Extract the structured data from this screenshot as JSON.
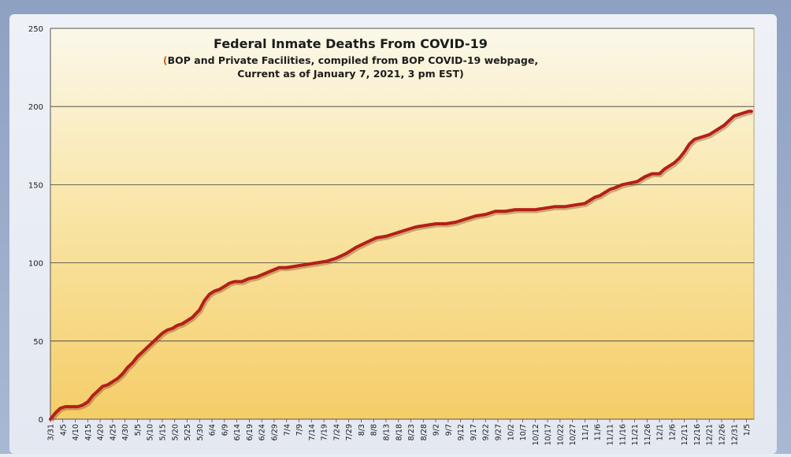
{
  "chart_data": {
    "type": "line",
    "title": "Federal Inmate Deaths From COVID-19",
    "subtitle_line1_open": "(",
    "subtitle_line1_text": "BOP and Private Facilities, compiled from BOP COVID-19 webpage,",
    "subtitle_line2": "Current as of January 7, 2021, 3 pm EST)",
    "xlabel": "",
    "ylabel": "",
    "ylim": [
      0,
      250
    ],
    "yticks": [
      0,
      50,
      100,
      150,
      200,
      250
    ],
    "grid": true,
    "x_tick_labels": [
      "3/31",
      "4/5",
      "4/10",
      "4/15",
      "4/20",
      "4/25",
      "4/30",
      "5/5",
      "5/10",
      "5/15",
      "5/20",
      "5/25",
      "5/30",
      "6/4",
      "6/9",
      "6/14",
      "6/19",
      "6/24",
      "6/29",
      "7/4",
      "7/9",
      "7/14",
      "7/19",
      "7/24",
      "7/29",
      "8/3",
      "8/8",
      "8/13",
      "8/18",
      "8/23",
      "8/28",
      "9/2",
      "9/7",
      "9/12",
      "9/17",
      "9/22",
      "9/27",
      "10/2",
      "10/7",
      "10/12",
      "10/17",
      "10/22",
      "10/27",
      "11/1",
      "11/6",
      "11/11",
      "11/16",
      "11/21",
      "11/26",
      "12/1",
      "12/6",
      "12/11",
      "12/16",
      "12/21",
      "12/26",
      "12/31",
      "1/5"
    ],
    "series": [
      {
        "x": [
          "3/31",
          "4/2",
          "4/4",
          "4/6",
          "4/9",
          "4/11",
          "4/13",
          "4/15",
          "4/17",
          "4/19",
          "4/21",
          "4/23",
          "4/25",
          "4/27",
          "4/29",
          "5/1",
          "5/3",
          "5/5",
          "5/7",
          "5/9",
          "5/11",
          "5/13",
          "5/15",
          "5/17",
          "5/19",
          "5/21",
          "5/23",
          "5/25",
          "5/27",
          "5/30",
          "6/1",
          "6/3",
          "6/5",
          "6/7",
          "6/9",
          "6/11",
          "6/13",
          "6/16",
          "6/19",
          "6/22",
          "6/25",
          "6/28",
          "7/1",
          "7/4",
          "7/8",
          "7/12",
          "7/16",
          "7/20",
          "7/24",
          "7/28",
          "8/1",
          "8/5",
          "8/9",
          "8/13",
          "8/17",
          "8/21",
          "8/25",
          "8/29",
          "9/2",
          "9/6",
          "9/10",
          "9/14",
          "9/18",
          "9/22",
          "9/26",
          "9/30",
          "10/4",
          "10/8",
          "10/12",
          "10/16",
          "10/20",
          "10/24",
          "10/28",
          "11/1",
          "11/3",
          "11/5",
          "11/7",
          "11/9",
          "11/11",
          "11/13",
          "11/16",
          "11/19",
          "11/22",
          "11/25",
          "11/28",
          "12/1",
          "12/3",
          "12/5",
          "12/7",
          "12/9",
          "12/11",
          "12/13",
          "12/15",
          "12/17",
          "12/19",
          "12/21",
          "12/23",
          "12/25",
          "12/27",
          "12/29",
          "12/31",
          "1/2",
          "1/4",
          "1/6",
          "1/7"
        ],
        "y": [
          0,
          4,
          7,
          8,
          8,
          8,
          9,
          11,
          15,
          18,
          21,
          22,
          24,
          26,
          29,
          33,
          36,
          40,
          43,
          46,
          49,
          52,
          55,
          57,
          58,
          60,
          61,
          63,
          65,
          70,
          76,
          80,
          82,
          83,
          85,
          87,
          88,
          88,
          90,
          91,
          93,
          95,
          97,
          97,
          98,
          99,
          100,
          101,
          103,
          106,
          110,
          113,
          116,
          117,
          119,
          121,
          123,
          124,
          125,
          125,
          126,
          128,
          130,
          131,
          133,
          133,
          134,
          134,
          134,
          135,
          136,
          136,
          137,
          138,
          140,
          142,
          143,
          145,
          147,
          148,
          150,
          151,
          152,
          155,
          157,
          157,
          160,
          162,
          164,
          167,
          171,
          176,
          179,
          180,
          181,
          182,
          184,
          186,
          188,
          191,
          194,
          195,
          196,
          197,
          197
        ]
      }
    ],
    "colors": {
      "line": "#b3201a",
      "plot_top": "#fbf7e6",
      "plot_bottom": "#f6cf6c",
      "frame": "#8fa3c6"
    }
  }
}
